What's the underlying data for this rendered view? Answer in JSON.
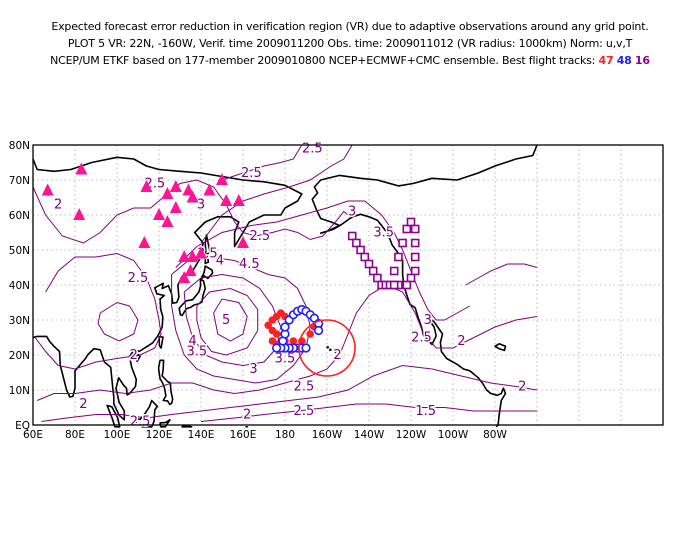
{
  "header": {
    "line1": "Expected forecast error reduction in verification region (VR) due to adaptive observations around any grid point.",
    "line2": "PLOT 5 VR: 22N, -160W, Verif. time 2009011200 Obs. time: 2009011012 (VR radius: 1000km) Norm: u,v,T",
    "line3_prefix": "NCEP/UM ETKF based on 177-member 2009010800 NCEP+ECMWF+CMC ensemble. Best flight tracks:",
    "tracks": [
      {
        "label": "47",
        "color": "#ff2020"
      },
      {
        "label": "48",
        "color": "#2020ff"
      },
      {
        "label": "16",
        "color": "#900090"
      }
    ]
  },
  "map": {
    "lon_labels": [
      "60E",
      "80E",
      "100E",
      "120E",
      "140E",
      "160E",
      "180",
      "160W",
      "140W",
      "120W",
      "100W",
      "80W"
    ],
    "lat_labels": [
      "EQ",
      "10N",
      "20N",
      "30N",
      "40N",
      "50N",
      "60N",
      "70N",
      "80N"
    ],
    "contour_color": "#800080",
    "contour_labels": [
      {
        "text": "2.5",
        "lon": 118,
        "lat": 69
      },
      {
        "text": "2",
        "lon": 72,
        "lat": 63
      },
      {
        "text": "3",
        "lon": 140,
        "lat": 63
      },
      {
        "text": "2.5",
        "lon": 164,
        "lat": 72
      },
      {
        "text": "2.5",
        "lon": 193,
        "lat": 79
      },
      {
        "text": "3",
        "lon": 212,
        "lat": 61
      },
      {
        "text": "3.5",
        "lon": 227,
        "lat": 55
      },
      {
        "text": "2.5",
        "lon": 168,
        "lat": 54
      },
      {
        "text": "3.5",
        "lon": 143,
        "lat": 49
      },
      {
        "text": "4",
        "lon": 149,
        "lat": 47
      },
      {
        "text": "4.5",
        "lon": 163,
        "lat": 46
      },
      {
        "text": "2.5",
        "lon": 110,
        "lat": 42
      },
      {
        "text": "5",
        "lon": 152,
        "lat": 30
      },
      {
        "text": "4",
        "lon": 179,
        "lat": 26
      },
      {
        "text": "4",
        "lon": 136,
        "lat": 24
      },
      {
        "text": "3.5",
        "lon": 138,
        "lat": 21
      },
      {
        "text": "3",
        "lon": 165,
        "lat": 16
      },
      {
        "text": "3.5",
        "lon": 180,
        "lat": 19
      },
      {
        "text": "2",
        "lon": 108,
        "lat": 20
      },
      {
        "text": "2.5",
        "lon": 189,
        "lat": 11
      },
      {
        "text": "2",
        "lon": 205,
        "lat": 20
      },
      {
        "text": "2",
        "lon": 84,
        "lat": 6
      },
      {
        "text": "2.5",
        "lon": 111,
        "lat": 1
      },
      {
        "text": "2",
        "lon": 162,
        "lat": 3
      },
      {
        "text": "2.5",
        "lon": 189,
        "lat": 4
      },
      {
        "text": "3",
        "lon": 248,
        "lat": 30
      },
      {
        "text": "2.5",
        "lon": 245,
        "lat": 25
      },
      {
        "text": "2",
        "lon": 264,
        "lat": 24
      },
      {
        "text": "2",
        "lon": 293,
        "lat": 11
      },
      {
        "text": "1.5",
        "lon": 247,
        "lat": 4
      }
    ],
    "verification_region": {
      "lon": 200,
      "lat": 22,
      "color": "#ff2020"
    },
    "triangle_color": "#ff1493"
  }
}
